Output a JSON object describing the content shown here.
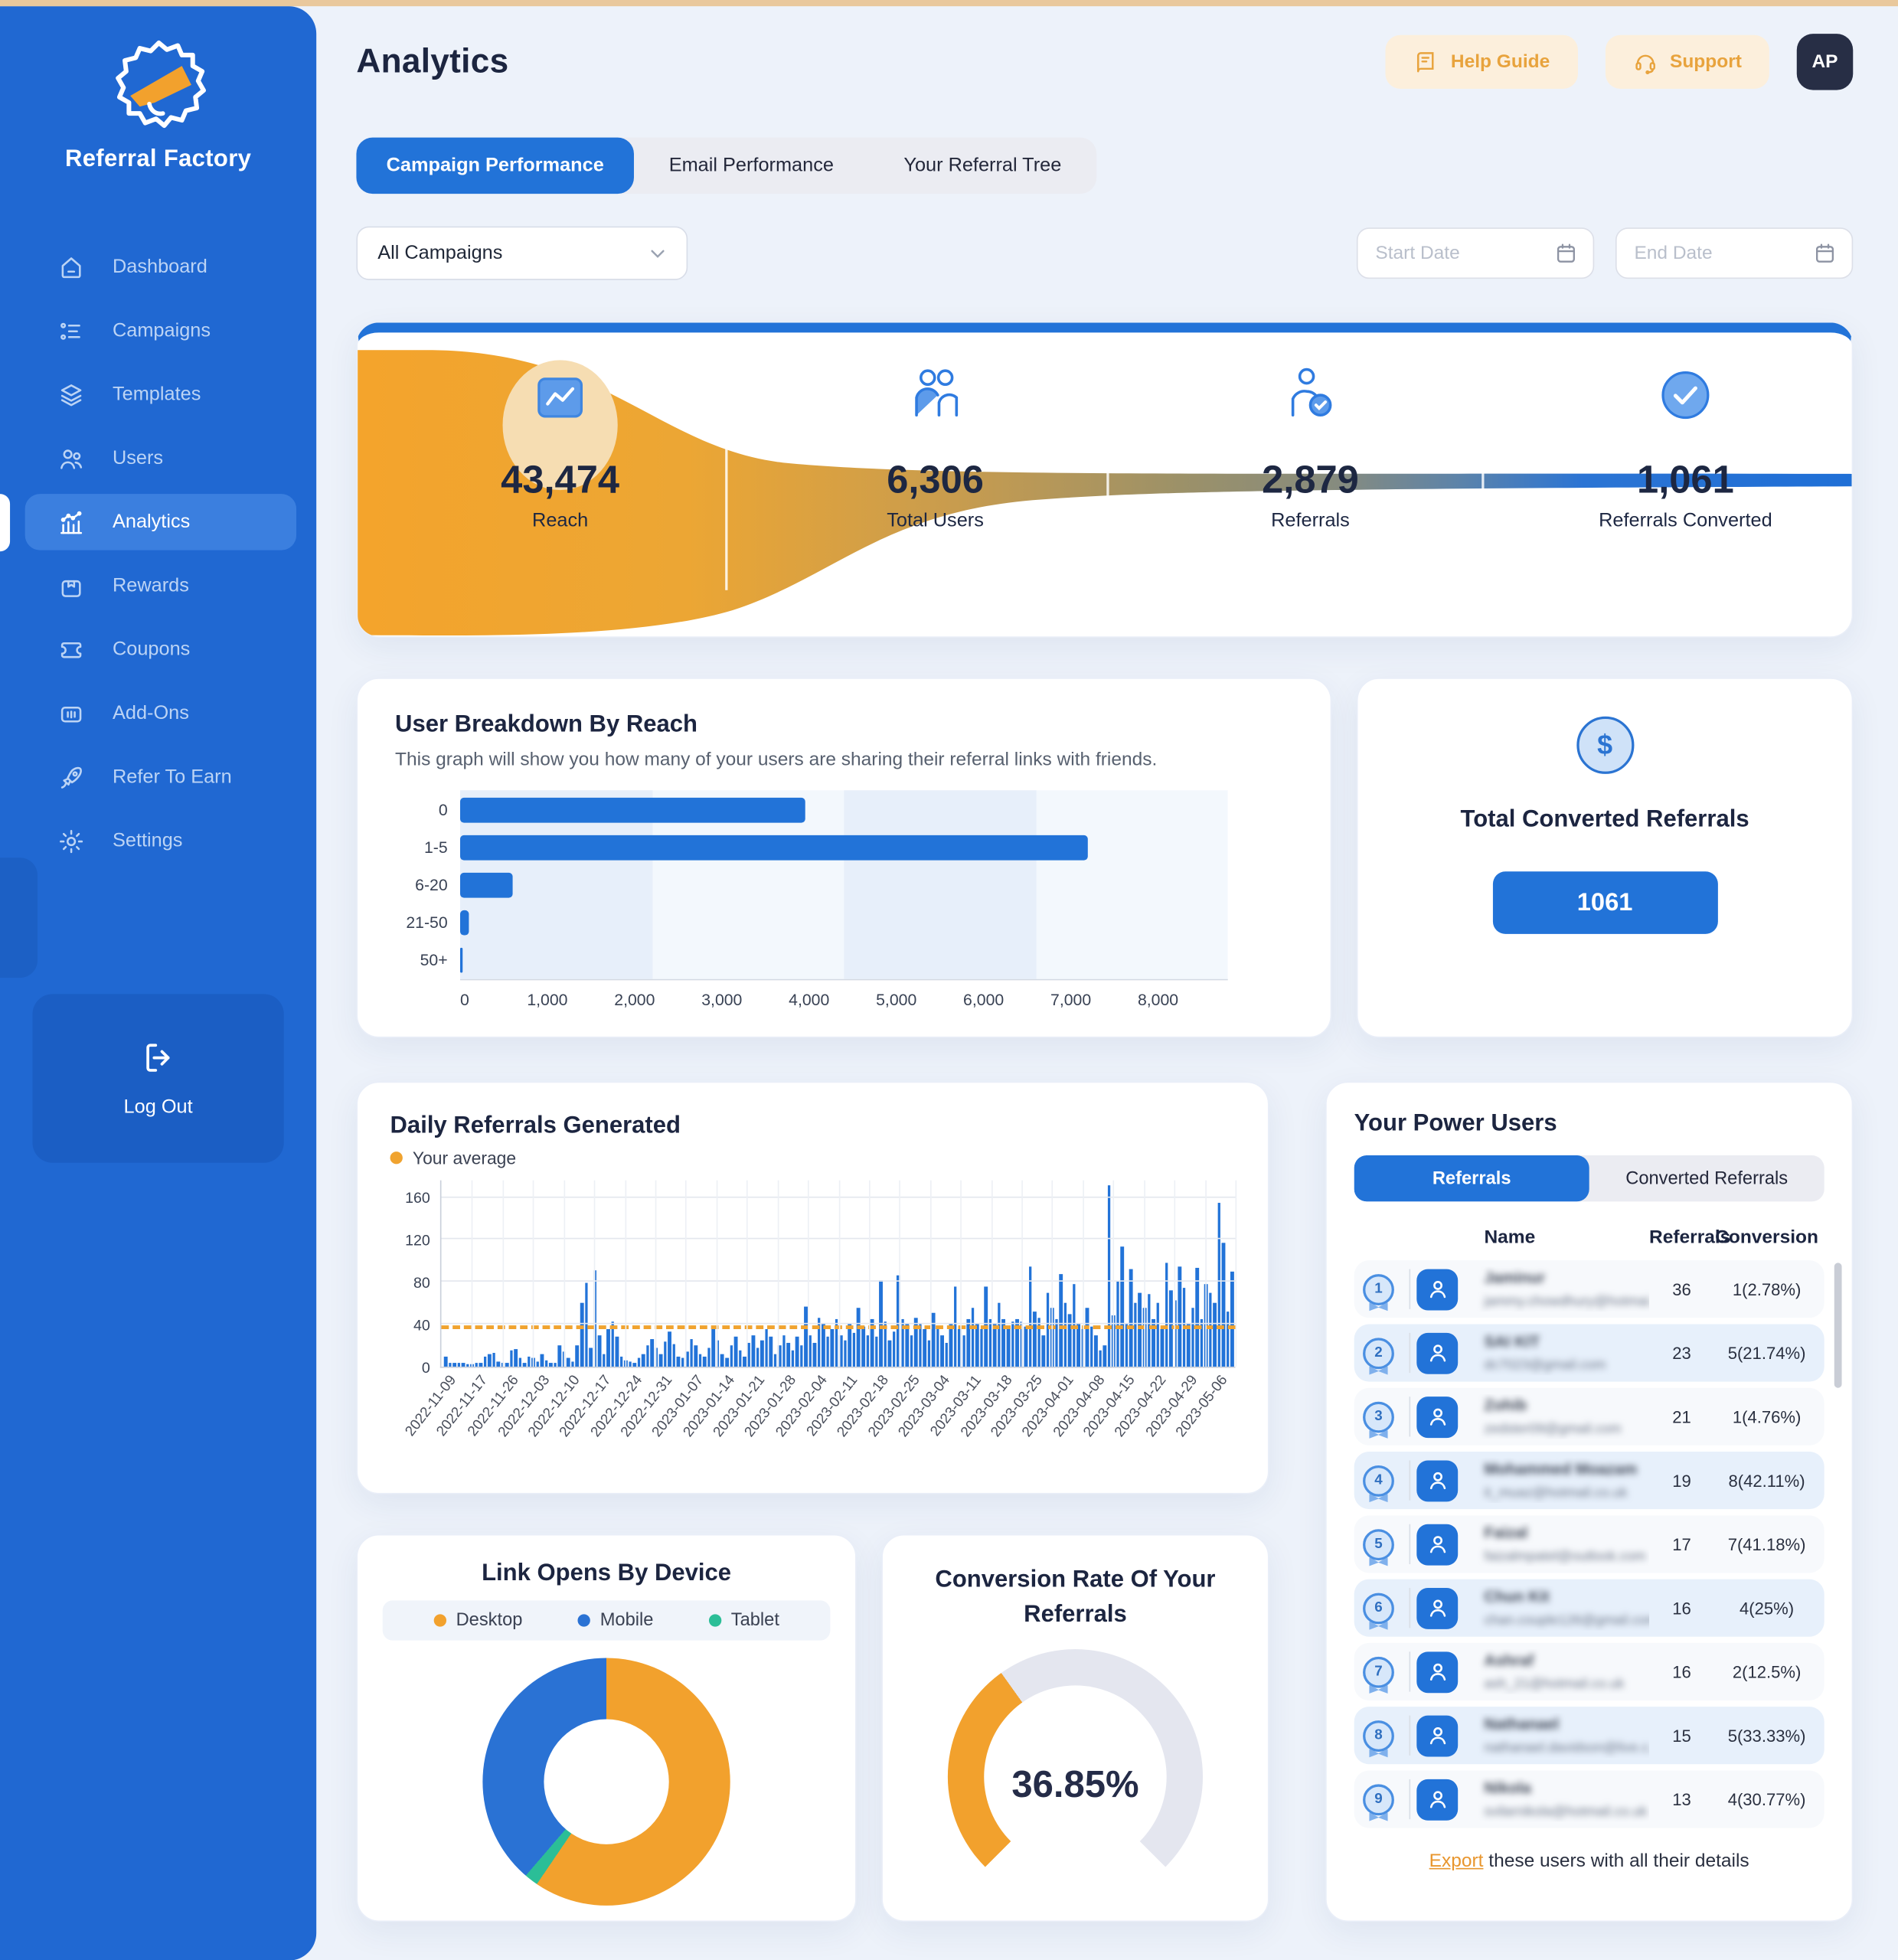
{
  "sidebar": {
    "brand": "Referral Factory",
    "items": [
      {
        "label": "Dashboard",
        "icon": "home",
        "active": false
      },
      {
        "label": "Campaigns",
        "icon": "list",
        "active": false
      },
      {
        "label": "Templates",
        "icon": "layers",
        "active": false
      },
      {
        "label": "Users",
        "icon": "users",
        "active": false
      },
      {
        "label": "Analytics",
        "icon": "analytics",
        "active": true
      },
      {
        "label": "Rewards",
        "icon": "gift",
        "active": false
      },
      {
        "label": "Coupons",
        "icon": "ticket",
        "active": false
      },
      {
        "label": "Add-Ons",
        "icon": "addons",
        "active": false
      },
      {
        "label": "Refer To Earn",
        "icon": "rocket",
        "active": false
      },
      {
        "label": "Settings",
        "icon": "gear",
        "active": false
      }
    ],
    "logout_label": "Log Out"
  },
  "header": {
    "title": "Analytics",
    "help_guide": "Help Guide",
    "support": "Support",
    "avatar_initials": "AP"
  },
  "tabs": [
    {
      "label": "Campaign Performance",
      "active": true
    },
    {
      "label": "Email Performance",
      "active": false
    },
    {
      "label": "Your Referral Tree",
      "active": false
    }
  ],
  "filters": {
    "campaign_select": "All Campaigns",
    "start_date_placeholder": "Start Date",
    "end_date_placeholder": "End Date"
  },
  "converted_card": {
    "title": "Total Converted Referrals",
    "value": "1061"
  },
  "breakdown_card": {
    "title": "User Breakdown By Reach",
    "description": "This graph will show you how many of your users are sharing their referral links with friends."
  },
  "daily_card": {
    "title": "Daily Referrals Generated",
    "legend": "Your average"
  },
  "device_card": {
    "title": "Link Opens By Device"
  },
  "gauge_card": {
    "title_line1": "Conversion Rate Of Your",
    "title_line2": "Referrals",
    "value_label": "36.85%"
  },
  "power_users": {
    "title": "Your Power Users",
    "tabs": [
      {
        "label": "Referrals",
        "active": true
      },
      {
        "label": "Converted Referrals",
        "active": false
      }
    ],
    "columns": [
      "Name",
      "Referrals",
      "Conversion"
    ],
    "rows": [
      {
        "rank": "1",
        "name": "Jaminur",
        "email": "jammy.chowdhury@hotmai...",
        "referrals": "36",
        "conversion": "1(2.78%)"
      },
      {
        "rank": "2",
        "name": "SAI KIT",
        "email": "dc7023@gmail.com",
        "referrals": "23",
        "conversion": "5(21.74%)"
      },
      {
        "rank": "3",
        "name": "Zohib",
        "email": "zedster09@gmail.com",
        "referrals": "21",
        "conversion": "1(4.76%)"
      },
      {
        "rank": "4",
        "name": "Mohammed Moazam",
        "email": "it_muaz@hotmail.co.uk",
        "referrals": "19",
        "conversion": "8(42.11%)"
      },
      {
        "rank": "5",
        "name": "Faizal",
        "email": "faizalmpatel@outlook.com",
        "referrals": "17",
        "conversion": "7(41.18%)"
      },
      {
        "rank": "6",
        "name": "Chun Kit",
        "email": "chan.couple126@gmail.com",
        "referrals": "16",
        "conversion": "4(25%)"
      },
      {
        "rank": "7",
        "name": "Ashraf",
        "email": "ash_21@hotmail.co.uk",
        "referrals": "16",
        "conversion": "2(12.5%)"
      },
      {
        "rank": "8",
        "name": "Nathanael",
        "email": "nathanael.davidson@live.c...",
        "referrals": "15",
        "conversion": "5(33.33%)"
      },
      {
        "rank": "9",
        "name": "Nikola",
        "email": "svilarnikola@hotmail.co.uk",
        "referrals": "13",
        "conversion": "4(30.77%)"
      }
    ],
    "export_link": "Export",
    "export_rest": " these users with all their details"
  },
  "chart_data": [
    {
      "type": "funnel",
      "stages": [
        {
          "value": "43,474",
          "label": "Reach",
          "icon": "chart"
        },
        {
          "value": "6,306",
          "label": "Total Users",
          "icon": "people"
        },
        {
          "value": "2,879",
          "label": "Referrals",
          "icon": "person-check"
        },
        {
          "value": "1,061",
          "label": "Referrals Converted",
          "icon": "check-circle"
        }
      ],
      "colors": {
        "start": "#F4A42C",
        "mid": "#9C9168",
        "end": "#1F6FD6"
      }
    },
    {
      "type": "bar",
      "orientation": "horizontal",
      "title": "User Breakdown By Reach",
      "categories": [
        "0",
        "1-5",
        "6-20",
        "21-50",
        "50+"
      ],
      "values": [
        3950,
        7200,
        600,
        95,
        28
      ],
      "xlim": [
        0,
        8800
      ],
      "x_ticks": [
        "0",
        "1,000",
        "2,000",
        "3,000",
        "4,000",
        "5,000",
        "6,000",
        "7,000",
        "8,000"
      ],
      "bar_color": "#2273D8"
    },
    {
      "type": "bar",
      "title": "Daily Referrals Generated",
      "legend": [
        "Your average"
      ],
      "average_value": 35,
      "average_color": "#F0A32F",
      "ylim": [
        0,
        176
      ],
      "y_ticks": [
        0,
        40,
        80,
        120,
        160
      ],
      "x_tick_labels": [
        "2022-11-09",
        "2022-11-17",
        "2022-11-26",
        "2022-12-03",
        "2022-12-10",
        "2022-12-17",
        "2022-12-24",
        "2022-12-31",
        "2023-01-07",
        "2023-01-14",
        "2023-01-21",
        "2023-01-28",
        "2023-02-04",
        "2023-02-11",
        "2023-02-18",
        "2023-02-25",
        "2023-03-04",
        "2023-03-11",
        "2023-03-18",
        "2023-03-25",
        "2023-04-01",
        "2023-04-08",
        "2023-04-15",
        "2023-04-22",
        "2023-04-29",
        "2023-05-06"
      ],
      "values": [
        10,
        3,
        3,
        4,
        3,
        2,
        2,
        3,
        3,
        9,
        12,
        13,
        5,
        3,
        4,
        15,
        17,
        8,
        4,
        10,
        8,
        5,
        12,
        6,
        4,
        3,
        20,
        14,
        8,
        5,
        20,
        60,
        79,
        18,
        91,
        30,
        12,
        36,
        42,
        28,
        10,
        6,
        5,
        4,
        8,
        12,
        20,
        26,
        18,
        12,
        24,
        33,
        21,
        10,
        8,
        14,
        26,
        20,
        12,
        9,
        18,
        35,
        25,
        12,
        8,
        20,
        28,
        15,
        10,
        22,
        30,
        18,
        25,
        35,
        28,
        12,
        20,
        30,
        22,
        15,
        28,
        20,
        57,
        30,
        22,
        46,
        40,
        28,
        35,
        45,
        30,
        25,
        40,
        32,
        55,
        38,
        30,
        45,
        28,
        81,
        42,
        25,
        33,
        86,
        45,
        40,
        30,
        46,
        40,
        35,
        25,
        51,
        38,
        30,
        22,
        40,
        76,
        35,
        30,
        45,
        56,
        40,
        35,
        76,
        45,
        40,
        60,
        45,
        35,
        43,
        45,
        42,
        38,
        94,
        52,
        46,
        30,
        70,
        55,
        45,
        87,
        60,
        50,
        78,
        40,
        35,
        55,
        38,
        30,
        15,
        20,
        171,
        48,
        80,
        113,
        40,
        92,
        60,
        70,
        55,
        68,
        45,
        60,
        35,
        98,
        72,
        63,
        95,
        75,
        40,
        55,
        93,
        45,
        78,
        70,
        60,
        155,
        117,
        52,
        90
      ],
      "bar_color": "#2273D8"
    },
    {
      "type": "pie",
      "title": "Link Opens By Device",
      "slices": [
        {
          "label": "Desktop",
          "value": 59.5,
          "color": "#F2A12D"
        },
        {
          "label": "Mobile",
          "value": 38.7,
          "color": "#2A72D4"
        },
        {
          "label": "Tablet",
          "value": 1.8,
          "color": "#2BBE97"
        }
      ],
      "draw_order": [
        "Desktop",
        "Tablet",
        "Mobile"
      ],
      "donut": true
    },
    {
      "type": "gauge",
      "title": "Conversion Rate Of Your Referrals",
      "value": 36.85,
      "max": 100,
      "sweep_deg": 270,
      "fill_color": "#F2A12D",
      "track_color": "#E4E6EF"
    }
  ]
}
